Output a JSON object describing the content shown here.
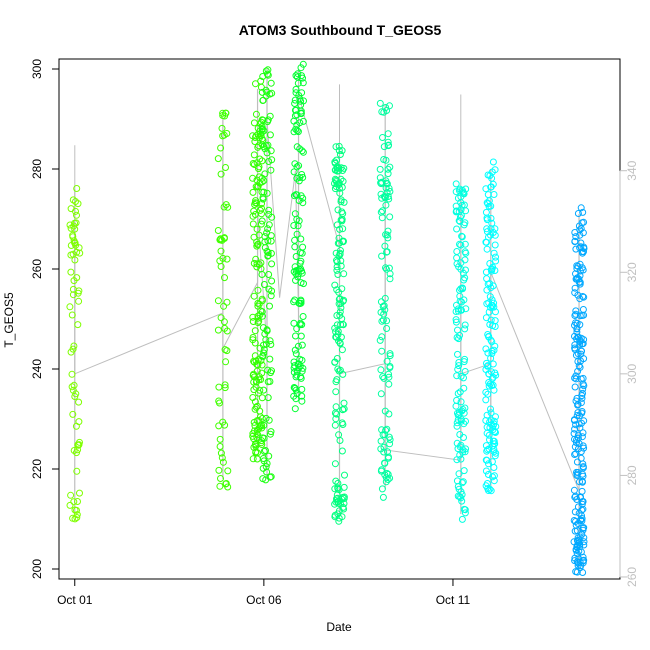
{
  "chart_data": {
    "type": "scatter",
    "title": "ATOM3 Southbound T_GEOS5",
    "xlabel": "Date",
    "ylabel": "T_GEOS5",
    "x_axis_type": "date",
    "xlim": [
      "2016-09-30T14:00",
      "2016-10-15T10:00"
    ],
    "ylim": [
      198,
      302
    ],
    "y2lim": [
      259.6,
      362
    ],
    "x_ticks": [
      {
        "value": "2016-10-01",
        "label": "Oct 01"
      },
      {
        "value": "2016-10-06",
        "label": "Oct 06"
      },
      {
        "value": "2016-10-11",
        "label": "Oct 11"
      }
    ],
    "y_ticks": [
      200,
      220,
      240,
      260,
      280,
      300
    ],
    "y2_ticks": [
      260,
      280,
      300,
      320,
      340
    ],
    "grid": false,
    "legend": "none",
    "colors": {
      "line": "#bebebe",
      "right_axis": "#c0c0c0",
      "point_palette": [
        "#7fff00",
        "#40ff00",
        "#00ff40",
        "#00ff80",
        "#00ffbf",
        "#00ffff",
        "#00bfff",
        "#0080ff"
      ]
    },
    "line_series": {
      "name": "",
      "axis": "right",
      "points": [
        [
          "2016-10-01T00:00",
          312
        ],
        [
          "2016-10-01T00:00",
          330
        ],
        [
          "2016-10-01T00:00",
          345
        ],
        [
          "2016-10-01T00:00",
          300
        ],
        [
          "2016-10-04T22:00",
          312
        ],
        [
          "2016-10-04T22:00",
          350
        ],
        [
          "2016-10-04T22:00",
          320
        ],
        [
          "2016-10-04T22:00",
          305
        ],
        [
          "2016-10-05T20:00",
          318
        ],
        [
          "2016-10-05T20:00",
          332
        ],
        [
          "2016-10-06T02:00",
          305
        ],
        [
          "2016-10-06T02:00",
          350
        ],
        [
          "2016-10-06T10:00",
          315
        ],
        [
          "2016-10-06T20:00",
          340
        ],
        [
          "2016-10-06T22:00",
          312
        ],
        [
          "2016-10-06T22:00",
          355
        ],
        [
          "2016-10-08T00:00",
          325
        ],
        [
          "2016-10-08T00:00",
          357
        ],
        [
          "2016-10-08T00:00",
          300
        ],
        [
          "2016-10-09T05:00",
          302
        ],
        [
          "2016-10-09T05:00",
          335
        ],
        [
          "2016-10-09T05:00",
          285
        ],
        [
          "2016-10-11T05:00",
          283
        ],
        [
          "2016-10-11T05:00",
          355
        ],
        [
          "2016-10-11T05:00",
          300
        ],
        [
          "2016-10-12T00:00",
          302
        ],
        [
          "2016-10-12T00:00",
          278
        ],
        [
          "2016-10-12T00:00",
          320
        ],
        [
          "2016-10-14T08:00",
          277
        ],
        [
          "2016-10-14T08:00",
          310
        ]
      ]
    },
    "point_series": [
      {
        "name": "",
        "color": "#7fff00",
        "x": "2016-10-01T00:00",
        "n": 70,
        "samples": [
          211,
          212,
          213,
          215,
          218,
          223,
          225,
          230,
          235,
          237,
          245,
          250,
          252,
          255,
          258,
          262,
          265,
          268,
          270,
          273,
          276,
          270,
          266,
          262,
          258,
          252,
          213,
          211
        ]
      },
      {
        "name": "",
        "color": "#40ff00",
        "x": "2016-10-04T22:00",
        "n": 60,
        "samples": [
          218,
          219,
          221,
          222,
          226,
          230,
          235,
          240,
          245,
          248,
          250,
          252,
          255,
          258,
          260,
          262,
          265,
          268,
          272,
          279,
          283,
          287,
          290
        ]
      },
      {
        "name": "",
        "color": "#33ff00",
        "x": "2016-10-05T20:00",
        "n": 150,
        "samples": [
          224,
          225,
          226,
          227,
          228,
          229,
          230,
          232,
          234,
          236,
          238,
          240,
          242,
          245,
          248,
          250,
          252,
          255,
          258,
          260,
          262,
          265,
          268,
          270,
          272,
          275,
          278,
          280,
          282,
          284,
          286,
          288,
          291,
          296
        ]
      },
      {
        "name": "",
        "color": "#1aff10",
        "x": "2016-10-06T02:00",
        "n": 110,
        "samples": [
          218,
          219,
          222,
          228,
          230,
          234,
          236,
          238,
          240,
          242,
          244,
          246,
          248,
          250,
          252,
          255,
          258,
          260,
          262,
          264,
          267,
          270,
          272,
          275,
          278,
          280,
          283,
          285,
          288,
          290,
          292,
          294,
          296,
          298,
          300
        ]
      },
      {
        "name": "",
        "color": "#00ff30",
        "x": "2016-10-06T22:00",
        "n": 130,
        "samples": [
          234,
          235,
          236,
          238,
          240,
          242,
          245,
          248,
          250,
          252,
          255,
          258,
          260,
          262,
          265,
          268,
          270,
          273,
          275,
          278,
          280,
          283,
          285,
          288,
          290,
          292,
          294,
          296,
          298,
          299,
          300
        ]
      },
      {
        "name": "",
        "color": "#00ff7f",
        "x": "2016-10-08T00:00",
        "n": 150,
        "samples": [
          211,
          212,
          213,
          214,
          215,
          217,
          219,
          222,
          225,
          228,
          230,
          232,
          235,
          238,
          240,
          242,
          245,
          248,
          250,
          252,
          255,
          258,
          260,
          262,
          265,
          268,
          270,
          272,
          275,
          277,
          278,
          279,
          280,
          282,
          284
        ]
      },
      {
        "name": "",
        "color": "#00ffa0",
        "x": "2016-10-09T05:00",
        "n": 110,
        "samples": [
          216,
          218,
          220,
          222,
          224,
          225,
          226,
          228,
          232,
          236,
          238,
          240,
          242,
          245,
          248,
          250,
          252,
          255,
          258,
          260,
          262,
          265,
          268,
          270,
          273,
          276,
          278,
          280,
          282,
          285,
          287,
          289,
          291,
          293
        ]
      },
      {
        "name": "",
        "color": "#00ffe0",
        "x": "2016-10-11T05:00",
        "n": 130,
        "samples": [
          211,
          212,
          214,
          216,
          218,
          220,
          222,
          225,
          228,
          230,
          232,
          235,
          238,
          240,
          242,
          245,
          248,
          250,
          252,
          255,
          258,
          260,
          262,
          265,
          268,
          270,
          272,
          274,
          276
        ]
      },
      {
        "name": "",
        "color": "#00ffff",
        "x": "2016-10-12T00:00",
        "n": 150,
        "samples": [
          216,
          217,
          218,
          220,
          222,
          224,
          225,
          226,
          227,
          228,
          229,
          230,
          232,
          235,
          238,
          240,
          242,
          245,
          248,
          250,
          252,
          255,
          258,
          260,
          262,
          265,
          268,
          270,
          272,
          274,
          276,
          278,
          280
        ]
      },
      {
        "name": "",
        "color": "#00a8ff",
        "x": "2016-10-14T08:00",
        "n": 210,
        "samples": [
          200,
          201,
          202,
          203,
          204,
          205,
          206,
          208,
          210,
          211,
          212,
          213,
          215,
          218,
          220,
          222,
          224,
          226,
          228,
          230,
          232,
          234,
          236,
          238,
          240,
          242,
          244,
          246,
          248,
          250,
          252,
          254,
          256,
          258,
          260,
          262,
          264,
          266,
          268,
          271
        ]
      }
    ]
  }
}
